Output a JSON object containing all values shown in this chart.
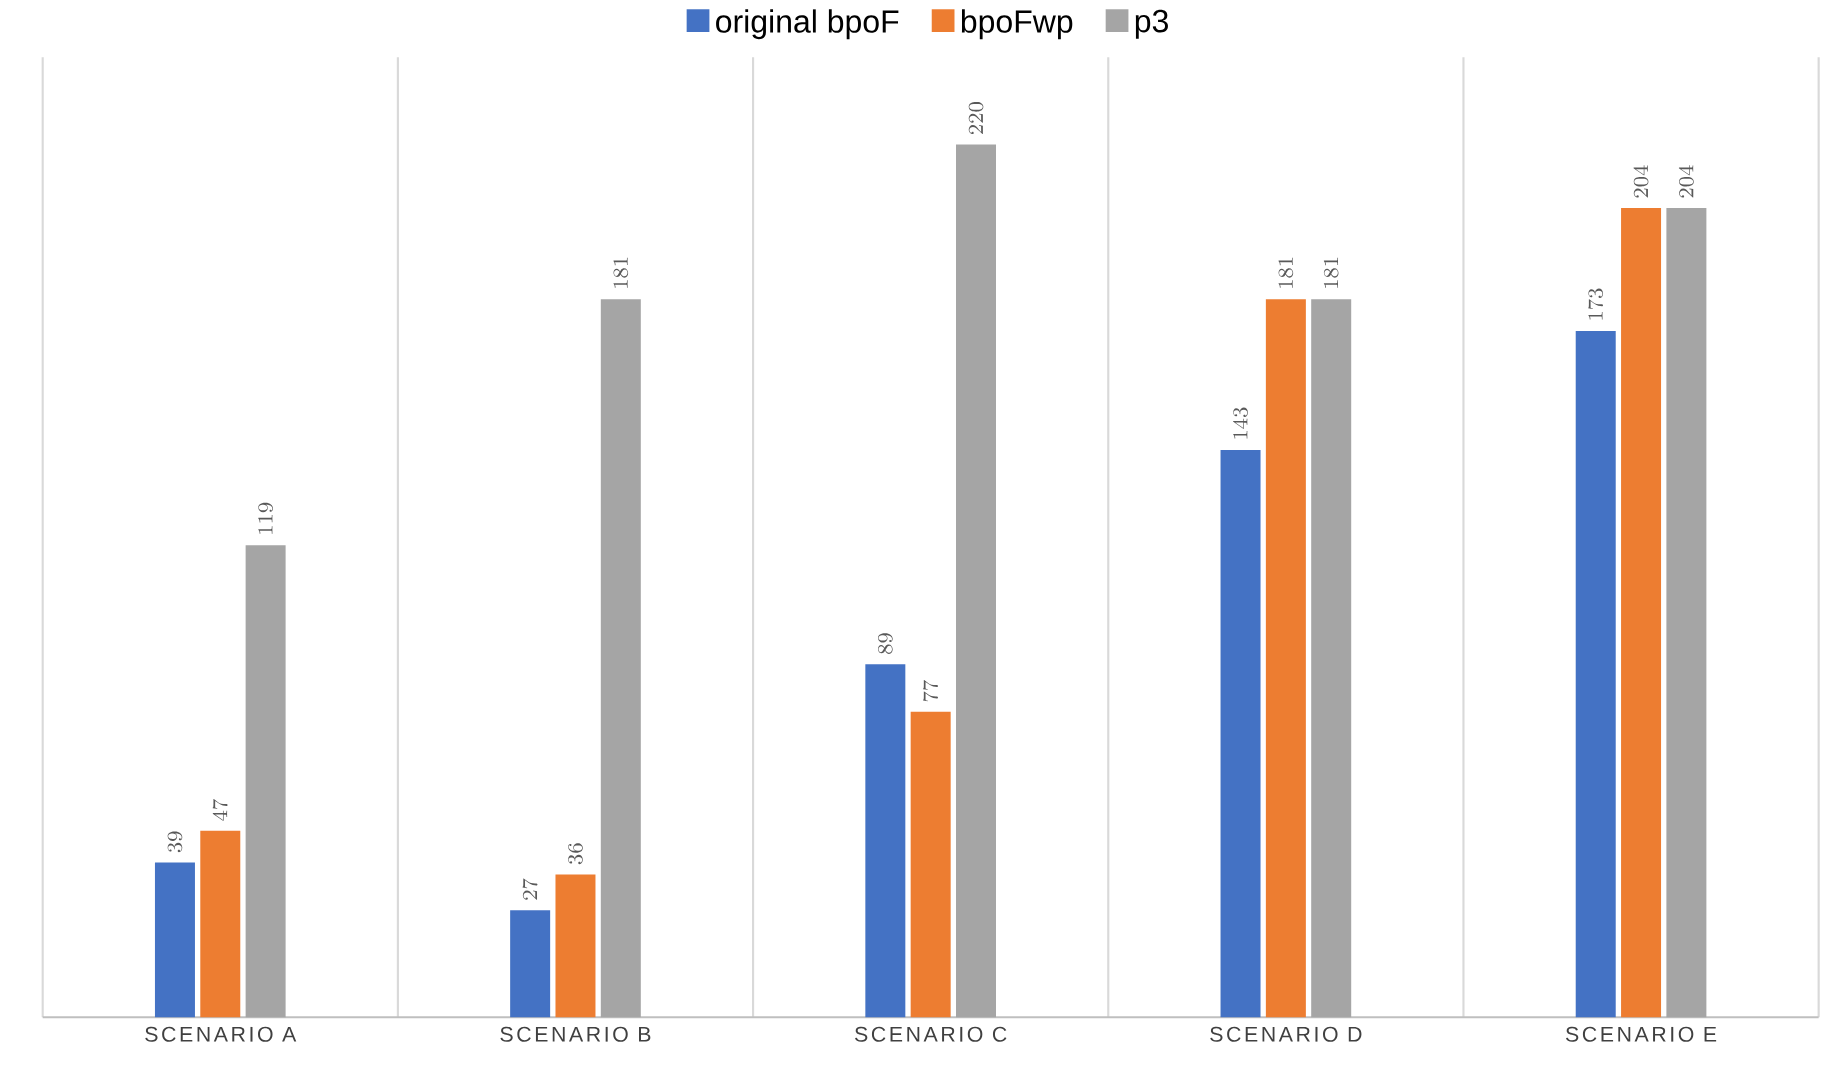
{
  "chart_data": {
    "type": "bar",
    "categories": [
      "SCENARIO A",
      "SCENARIO B",
      "SCENARIO C",
      "SCENARIO D",
      "SCENARIO E"
    ],
    "series": [
      {
        "name": "original bpoF",
        "color": "#4472c4",
        "values": [
          39,
          27,
          89,
          143,
          173
        ]
      },
      {
        "name": "bpoFwp",
        "color": "#ed7d31",
        "values": [
          47,
          36,
          77,
          181,
          204
        ]
      },
      {
        "name": "p3",
        "color": "#a5a5a5",
        "values": [
          119,
          181,
          220,
          181,
          204
        ]
      }
    ],
    "data_labels": true,
    "grid": "x",
    "legend": "top"
  }
}
